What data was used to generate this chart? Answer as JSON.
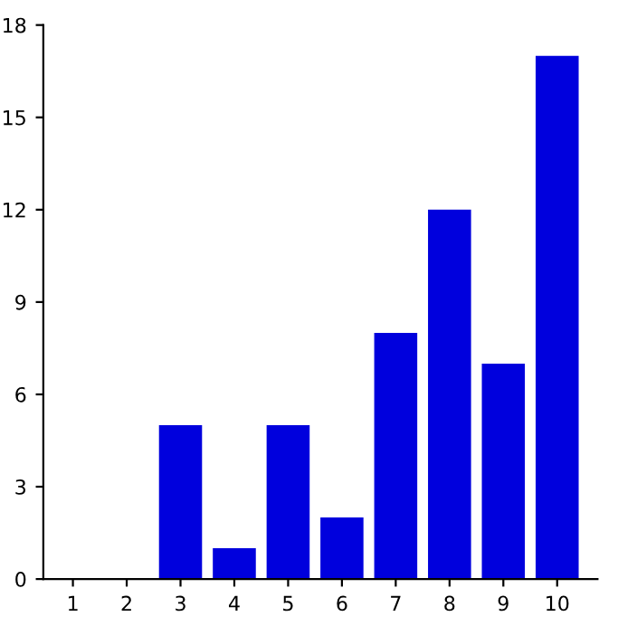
{
  "chart_data": {
    "type": "bar",
    "categories": [
      "1",
      "2",
      "3",
      "4",
      "5",
      "6",
      "7",
      "8",
      "9",
      "10"
    ],
    "values": [
      0,
      0,
      5,
      1,
      5,
      2,
      8,
      12,
      7,
      17
    ],
    "color": "#0000dd",
    "ylim": [
      0,
      18
    ],
    "yticks": [
      0,
      3,
      6,
      9,
      12,
      15,
      18
    ],
    "grid": false
  }
}
